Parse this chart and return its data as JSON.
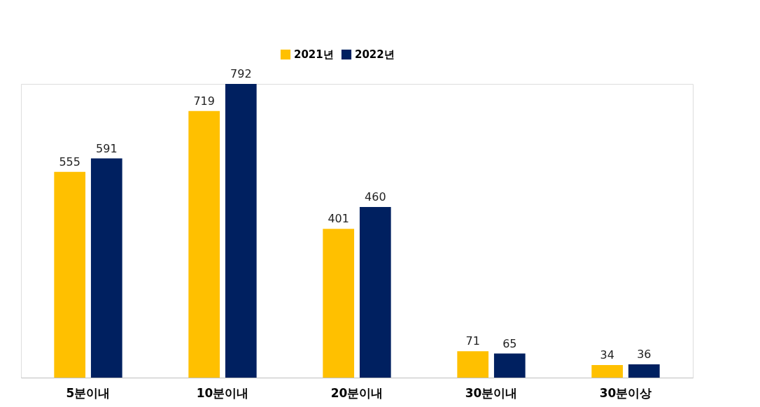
{
  "chart_data": {
    "type": "bar",
    "categories": [
      "5분이내",
      "10분이내",
      "20분이내",
      "30분이내",
      "30분이상"
    ],
    "series": [
      {
        "name": "2021년",
        "color": "#ffc000",
        "values": [
          555,
          719,
          401,
          71,
          34
        ]
      },
      {
        "name": "2022년",
        "color": "#002060",
        "values": [
          591,
          792,
          460,
          65,
          36
        ]
      }
    ],
    "data_labels": true,
    "legend": "top"
  }
}
